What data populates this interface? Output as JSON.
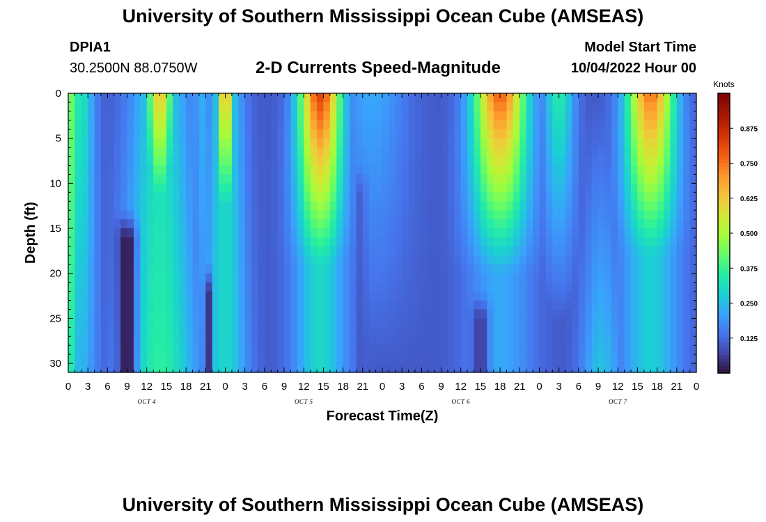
{
  "header": {
    "title": "University of Southern Mississippi Ocean Cube (AMSEAS)",
    "station_id": "DPIA1",
    "coordinates": "30.2500N  88.0750W",
    "subtitle": "2-D Currents Speed-Magnitude",
    "model_start_label": "Model Start Time",
    "model_start_value": "10/04/2022 Hour 00"
  },
  "footer": {
    "title": "University of Southern Mississippi Ocean Cube (AMSEAS)"
  },
  "chart_data": {
    "type": "heatmap",
    "title": "2-D Currents Speed-Magnitude",
    "xlabel": "Forecast Time(Z)",
    "ylabel": "Depth (ft)",
    "x_tick_labels": [
      "0",
      "3",
      "6",
      "9",
      "12",
      "15",
      "18",
      "21",
      "0",
      "3",
      "6",
      "9",
      "12",
      "15",
      "18",
      "21",
      "0",
      "3",
      "6",
      "9",
      "12",
      "15",
      "18",
      "21",
      "0",
      "3",
      "6",
      "9",
      "12",
      "15",
      "18",
      "21",
      "0"
    ],
    "x_hours": [
      0,
      3,
      6,
      9,
      12,
      15,
      18,
      21,
      24,
      27,
      30,
      33,
      36,
      39,
      42,
      45,
      48,
      51,
      54,
      57,
      60,
      63,
      66,
      69,
      72,
      75,
      78,
      81,
      84,
      87,
      90,
      93,
      96
    ],
    "xlim": [
      0,
      96
    ],
    "date_labels": [
      {
        "text": "OCT 4",
        "hour": 12
      },
      {
        "text": "OCT 5",
        "hour": 36
      },
      {
        "text": "OCT 6",
        "hour": 60
      },
      {
        "text": "OCT 7",
        "hour": 84
      }
    ],
    "y_tick_labels": [
      "0",
      "5",
      "10",
      "15",
      "20",
      "25",
      "30"
    ],
    "y_values": [
      0,
      5,
      10,
      15,
      20,
      25,
      30
    ],
    "ylim": [
      0,
      31
    ],
    "colorbar": {
      "unit": "Knots",
      "range": [
        0,
        1.0
      ],
      "tick_labels": [
        "0.125",
        "0.250",
        "0.375",
        "0.500",
        "0.625",
        "0.750",
        "0.875"
      ],
      "tick_values": [
        0.125,
        0.25,
        0.375,
        0.5,
        0.625,
        0.75,
        0.875
      ]
    },
    "speed_peaks_knots": [
      {
        "hour": 0.3,
        "width": 1.3,
        "surface": 0.44,
        "bottom": 0.34
      },
      {
        "hour": 1.7,
        "width": 2.2,
        "surface": 0.34,
        "bottom": 0.24
      },
      {
        "hour": 14.0,
        "width": 2.0,
        "surface": 0.64,
        "bottom": 0.13,
        "depth": 19
      },
      {
        "hour": 14.0,
        "width": 4.5,
        "surface": 0.3,
        "bottom": 0.36
      },
      {
        "hour": 20.2,
        "width": 1.0,
        "surface": 0.24,
        "bottom": 0.18
      },
      {
        "hour": 24.0,
        "width": 1.3,
        "surface": 0.68,
        "bottom": 0.16,
        "depth": 18
      },
      {
        "hour": 24.0,
        "width": 2.7,
        "surface": 0.3,
        "bottom": 0.3
      },
      {
        "hour": 38.5,
        "width": 3.2,
        "surface": 0.83,
        "bottom": 0.3,
        "depth": 19
      },
      {
        "hour": 46.5,
        "width": 5.0,
        "surface": 0.22,
        "bottom": 0.1
      },
      {
        "hour": 51.5,
        "width": 3.5,
        "surface": 0.12,
        "bottom": 0.02
      },
      {
        "hour": 66.0,
        "width": 4.0,
        "surface": 0.78,
        "bottom": 0.22,
        "depth": 20
      },
      {
        "hour": 75.0,
        "width": 2.3,
        "surface": 0.35,
        "bottom": 0.05
      },
      {
        "hour": 81.5,
        "width": 2.5,
        "surface": 0.1,
        "bottom": 0.26
      },
      {
        "hour": 89.0,
        "width": 3.6,
        "surface": 0.75,
        "bottom": 0.28,
        "depth": 18
      }
    ],
    "speed_minima_knots": [
      {
        "hour": 9.0,
        "width": 1.4,
        "value": 0.0,
        "from_depth": 13
      },
      {
        "hour": 21.3,
        "width": 0.5,
        "value": 0.02,
        "from_depth": 19
      },
      {
        "hour": 44.8,
        "width": 0.7,
        "value": 0.1,
        "from_depth": 8
      },
      {
        "hour": 63.0,
        "width": 1.2,
        "value": 0.05,
        "from_depth": 22
      }
    ]
  }
}
